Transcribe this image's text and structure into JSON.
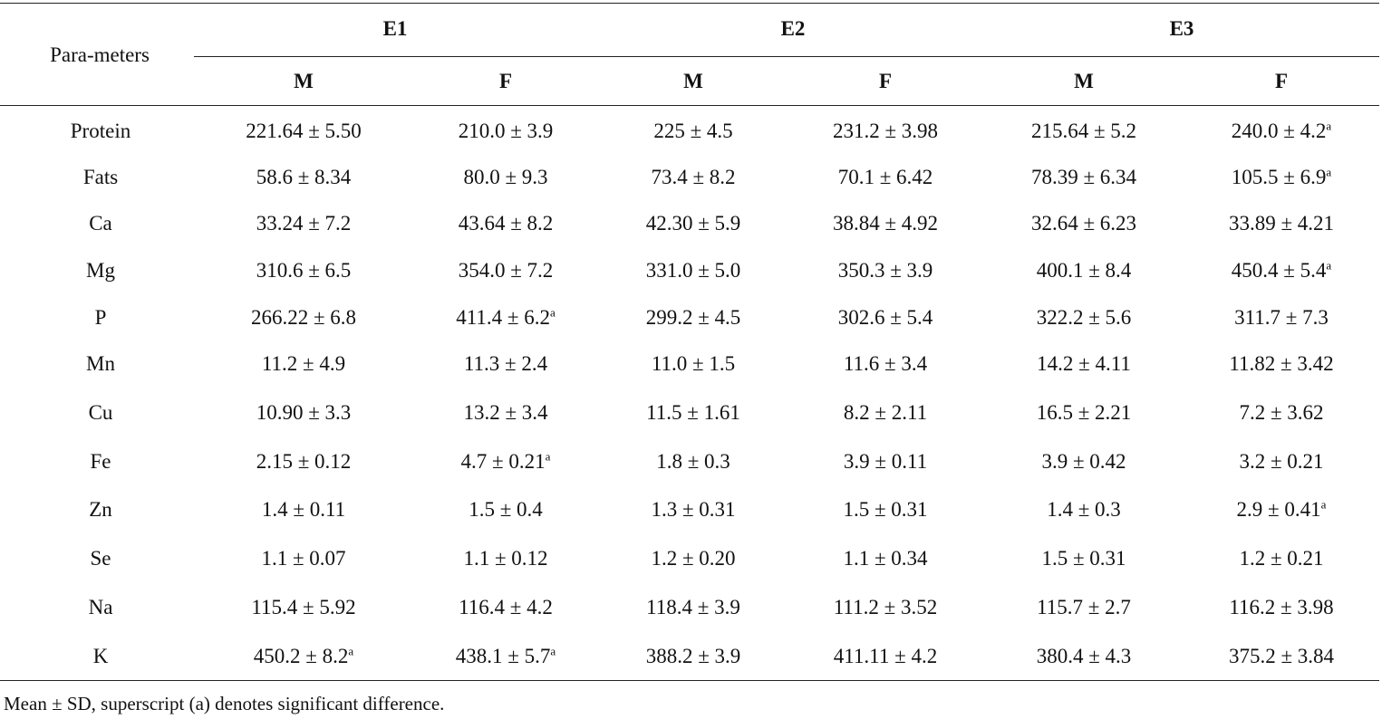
{
  "table": {
    "param_header": "Para-meters",
    "groups": [
      "E1",
      "E2",
      "E3"
    ],
    "subheaders": [
      "M",
      "F",
      "M",
      "F",
      "M",
      "F"
    ],
    "rows": [
      {
        "param": "Protein",
        "cells": [
          {
            "v": "221.64 ± 5.50",
            "sup": ""
          },
          {
            "v": "210.0 ± 3.9",
            "sup": ""
          },
          {
            "v": "225 ± 4.5",
            "sup": ""
          },
          {
            "v": "231.2 ± 3.98",
            "sup": ""
          },
          {
            "v": "215.64 ± 5.2",
            "sup": ""
          },
          {
            "v": "240.0 ± 4.2",
            "sup": "a"
          }
        ]
      },
      {
        "param": "Fats",
        "cells": [
          {
            "v": "58.6 ± 8.34",
            "sup": ""
          },
          {
            "v": "80.0 ± 9.3",
            "sup": ""
          },
          {
            "v": "73.4 ± 8.2",
            "sup": ""
          },
          {
            "v": "70.1 ± 6.42",
            "sup": ""
          },
          {
            "v": "78.39 ± 6.34",
            "sup": ""
          },
          {
            "v": "105.5 ± 6.9",
            "sup": "a"
          }
        ]
      },
      {
        "param": "Ca",
        "cells": [
          {
            "v": "33.24 ± 7.2",
            "sup": ""
          },
          {
            "v": "43.64 ± 8.2",
            "sup": ""
          },
          {
            "v": "42.30 ± 5.9",
            "sup": ""
          },
          {
            "v": "38.84 ± 4.92",
            "sup": ""
          },
          {
            "v": "32.64 ± 6.23",
            "sup": ""
          },
          {
            "v": "33.89 ± 4.21",
            "sup": ""
          }
        ]
      },
      {
        "param": "Mg",
        "cells": [
          {
            "v": "310.6 ± 6.5",
            "sup": ""
          },
          {
            "v": "354.0 ± 7.2",
            "sup": ""
          },
          {
            "v": "331.0 ± 5.0",
            "sup": ""
          },
          {
            "v": "350.3 ± 3.9",
            "sup": ""
          },
          {
            "v": "400.1 ± 8.4",
            "sup": ""
          },
          {
            "v": "450.4 ± 5.4",
            "sup": "a"
          }
        ]
      },
      {
        "param": "P",
        "cells": [
          {
            "v": "266.22 ± 6.8",
            "sup": ""
          },
          {
            "v": "411.4 ± 6.2",
            "sup": "a"
          },
          {
            "v": "299.2 ± 4.5",
            "sup": ""
          },
          {
            "v": "302.6 ± 5.4",
            "sup": ""
          },
          {
            "v": "322.2 ± 5.6",
            "sup": ""
          },
          {
            "v": "311.7 ± 7.3",
            "sup": ""
          }
        ]
      },
      {
        "param": "Mn",
        "cells": [
          {
            "v": "11.2 ± 4.9",
            "sup": ""
          },
          {
            "v": "11.3 ± 2.4",
            "sup": ""
          },
          {
            "v": "11.0 ± 1.5",
            "sup": ""
          },
          {
            "v": "11.6 ± 3.4",
            "sup": ""
          },
          {
            "v": "14.2 ± 4.11",
            "sup": ""
          },
          {
            "v": "11.82 ± 3.42",
            "sup": ""
          }
        ]
      },
      {
        "param": "Cu",
        "cells": [
          {
            "v": "10.90 ± 3.3",
            "sup": ""
          },
          {
            "v": "13.2 ± 3.4",
            "sup": ""
          },
          {
            "v": "11.5 ± 1.61",
            "sup": ""
          },
          {
            "v": "8.2 ± 2.11",
            "sup": ""
          },
          {
            "v": "16.5 ± 2.21",
            "sup": ""
          },
          {
            "v": "7.2 ± 3.62",
            "sup": ""
          }
        ]
      },
      {
        "param": "Fe",
        "cells": [
          {
            "v": "2.15 ± 0.12",
            "sup": ""
          },
          {
            "v": "4.7 ± 0.21",
            "sup": "a"
          },
          {
            "v": "1.8 ± 0.3",
            "sup": ""
          },
          {
            "v": "3.9 ± 0.11",
            "sup": ""
          },
          {
            "v": "3.9 ± 0.42",
            "sup": ""
          },
          {
            "v": "3.2 ± 0.21",
            "sup": ""
          }
        ]
      },
      {
        "param": "Zn",
        "cells": [
          {
            "v": "1.4 ± 0.11",
            "sup": ""
          },
          {
            "v": "1.5 ± 0.4",
            "sup": ""
          },
          {
            "v": "1.3 ± 0.31",
            "sup": ""
          },
          {
            "v": "1.5 ± 0.31",
            "sup": ""
          },
          {
            "v": "1.4 ± 0.3",
            "sup": ""
          },
          {
            "v": "2.9 ± 0.41",
            "sup": "a"
          }
        ]
      },
      {
        "param": "Se",
        "cells": [
          {
            "v": "1.1 ± 0.07",
            "sup": ""
          },
          {
            "v": "1.1 ± 0.12",
            "sup": ""
          },
          {
            "v": "1.2 ± 0.20",
            "sup": ""
          },
          {
            "v": "1.1 ± 0.34",
            "sup": ""
          },
          {
            "v": "1.5 ± 0.31",
            "sup": ""
          },
          {
            "v": "1.2 ± 0.21",
            "sup": ""
          }
        ]
      },
      {
        "param": "Na",
        "cells": [
          {
            "v": "115.4 ± 5.92",
            "sup": ""
          },
          {
            "v": "116.4 ± 4.2",
            "sup": ""
          },
          {
            "v": "118.4 ± 3.9",
            "sup": ""
          },
          {
            "v": "111.2 ± 3.52",
            "sup": ""
          },
          {
            "v": "115.7 ± 2.7",
            "sup": ""
          },
          {
            "v": "116.2 ± 3.98",
            "sup": ""
          }
        ]
      },
      {
        "param": "K",
        "cells": [
          {
            "v": "450.2 ± 8.2",
            "sup": "a"
          },
          {
            "v": "438.1 ± 5.7",
            "sup": "a"
          },
          {
            "v": "388.2 ± 3.9",
            "sup": ""
          },
          {
            "v": "411.11 ± 4.2",
            "sup": ""
          },
          {
            "v": "380.4 ± 4.3",
            "sup": ""
          },
          {
            "v": "375.2 ± 3.84",
            "sup": ""
          }
        ]
      }
    ]
  },
  "footnote": "Mean ± SD, superscript (a) denotes significant difference."
}
